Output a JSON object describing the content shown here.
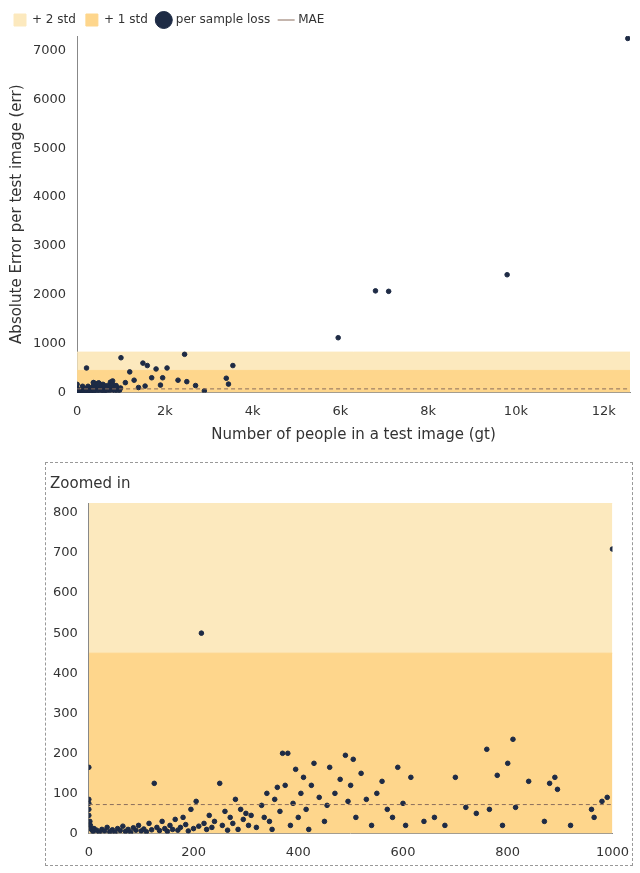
{
  "chart_data": [
    {
      "type": "scatter",
      "x_label": "Number of people in a test image (gt)",
      "y_label": "Absolute Error per test image (err)",
      "xlim": [
        0,
        12600
      ],
      "xticks": [
        0,
        {
          "value": 2000,
          "label": "2k"
        },
        {
          "value": 4000,
          "label": "4k"
        },
        {
          "value": 6000,
          "label": "6k"
        },
        {
          "value": 8000,
          "label": "8k"
        },
        {
          "value": 10000,
          "label": "10k"
        },
        {
          "value": 12000,
          "label": "12k"
        }
      ],
      "ylim": [
        0,
        7300
      ],
      "yticks": [
        0,
        1000,
        2000,
        3000,
        4000,
        5000,
        6000,
        7000
      ],
      "grid": false,
      "legend": "upper left",
      "series": [
        {
          "name": "+ 2 std",
          "type": "area",
          "color": "#fce9be",
          "x": [
            0,
            12600
          ],
          "values": [
            825,
            825
          ]
        },
        {
          "name": "+ 1 std",
          "type": "area",
          "color": "#fed68c",
          "x": [
            0,
            12600
          ],
          "values": [
            450,
            450
          ]
        },
        {
          "name": "per sample loss",
          "type": "scatter",
          "color": "#1e2b45",
          "marker": "circle",
          "x": [
            0,
            0,
            0,
            0,
            0,
            2,
            3,
            5,
            8,
            10,
            15,
            20,
            25,
            30,
            35,
            40,
            45,
            50,
            55,
            60,
            65,
            70,
            75,
            80,
            85,
            90,
            95,
            100,
            105,
            110,
            115,
            120,
            125,
            130,
            135,
            140,
            145,
            150,
            155,
            160,
            165,
            170,
            175,
            180,
            185,
            190,
            195,
            200,
            205,
            210,
            215,
            220,
            225,
            230,
            235,
            240,
            250,
            255,
            260,
            265,
            270,
            275,
            280,
            285,
            290,
            295,
            300,
            305,
            310,
            320,
            330,
            335,
            340,
            345,
            350,
            355,
            360,
            365,
            370,
            375,
            380,
            385,
            390,
            395,
            400,
            405,
            410,
            415,
            420,
            425,
            430,
            440,
            450,
            455,
            460,
            470,
            480,
            490,
            495,
            500,
            505,
            510,
            520,
            530,
            540,
            550,
            560,
            570,
            580,
            590,
            600,
            605,
            615,
            640,
            660,
            680,
            700,
            720,
            740,
            760,
            765,
            780,
            790,
            800,
            810,
            815,
            840,
            870,
            880,
            890,
            895,
            920,
            960,
            965,
            980,
            990,
            1000,
            1100,
            1200,
            1300,
            1400,
            1500,
            1550,
            1600,
            1700,
            1800,
            1900,
            1950,
            2050,
            2300,
            2450,
            2500,
            2700,
            2900,
            3400,
            3450,
            3550,
            5950,
            6800,
            7100,
            9800,
            12550
          ],
          "values": [
            165,
            85,
            75,
            60,
            45,
            30,
            20,
            10,
            5,
            12,
            8,
            3,
            10,
            6,
            15,
            4,
            9,
            2,
            12,
            7,
            18,
            5,
            10,
            3,
            14,
            8,
            20,
            6,
            11,
            4,
            25,
            9,
            125,
            15,
            7,
            30,
            12,
            5,
            20,
            10,
            35,
            8,
            15,
            40,
            22,
            6,
            60,
            12,
            80,
            18,
            500,
            25,
            10,
            45,
            15,
            30,
            125,
            20,
            55,
            8,
            40,
            25,
            85,
            10,
            60,
            35,
            50,
            20,
            45,
            15,
            70,
            40,
            100,
            30,
            10,
            85,
            115,
            55,
            200,
            120,
            200,
            20,
            75,
            160,
            40,
            100,
            140,
            60,
            10,
            120,
            175,
            90,
            30,
            70,
            165,
            100,
            135,
            195,
            80,
            120,
            185,
            40,
            150,
            85,
            20,
            100,
            130,
            60,
            40,
            165,
            75,
            20,
            140,
            30,
            40,
            20,
            140,
            65,
            50,
            210,
            60,
            145,
            20,
            175,
            235,
            65,
            130,
            30,
            125,
            140,
            110,
            20,
            60,
            40,
            80,
            90,
            710,
            200,
            420,
            250,
            100,
            600,
            130,
            550,
            300,
            480,
            150,
            300,
            500,
            250,
            780,
            220,
            140,
            30,
            290,
            170,
            550,
            1120,
            2080,
            2070,
            2410,
            7250
          ]
        },
        {
          "name": "MAE",
          "type": "line",
          "color": "#8a6d5c",
          "line_style": "dashed",
          "x": [
            0,
            12600
          ],
          "values": [
            72,
            72
          ]
        }
      ]
    },
    {
      "type": "scatter",
      "title": "Zoomed in",
      "xlim": [
        0,
        1000
      ],
      "xticks": [
        0,
        200,
        400,
        600,
        800,
        1000
      ],
      "ylim": [
        0,
        825
      ],
      "yticks": [
        0,
        100,
        200,
        300,
        400,
        500,
        600,
        700,
        800
      ],
      "grid": false,
      "series": [
        {
          "type": "area",
          "color": "#fce9be",
          "x": [
            0,
            1000
          ],
          "values": [
            825,
            825
          ]
        },
        {
          "type": "area",
          "color": "#fed68c",
          "x": [
            0,
            1000
          ],
          "values": [
            450,
            450
          ]
        },
        {
          "type": "scatter",
          "color": "#1e2b45",
          "marker": "circle",
          "x": [
            0,
            0,
            0,
            0,
            0,
            2,
            3,
            5,
            8,
            10,
            15,
            20,
            25,
            30,
            35,
            40,
            45,
            50,
            55,
            60,
            65,
            70,
            75,
            80,
            85,
            90,
            95,
            100,
            105,
            110,
            115,
            120,
            125,
            130,
            135,
            140,
            145,
            150,
            155,
            160,
            165,
            170,
            175,
            180,
            185,
            190,
            195,
            200,
            205,
            210,
            215,
            220,
            225,
            230,
            235,
            240,
            250,
            255,
            260,
            265,
            270,
            275,
            280,
            285,
            290,
            295,
            300,
            305,
            310,
            320,
            330,
            335,
            340,
            345,
            350,
            355,
            360,
            365,
            370,
            375,
            380,
            385,
            390,
            395,
            400,
            405,
            410,
            415,
            420,
            425,
            430,
            440,
            450,
            455,
            460,
            470,
            480,
            490,
            495,
            500,
            505,
            510,
            520,
            530,
            540,
            550,
            560,
            570,
            580,
            590,
            600,
            605,
            615,
            640,
            660,
            680,
            700,
            720,
            740,
            760,
            765,
            780,
            790,
            800,
            810,
            815,
            840,
            870,
            880,
            890,
            895,
            920,
            960,
            965,
            980,
            990,
            1000
          ],
          "values": [
            165,
            85,
            75,
            60,
            45,
            30,
            20,
            10,
            5,
            12,
            8,
            3,
            10,
            6,
            15,
            4,
            9,
            2,
            12,
            7,
            18,
            5,
            10,
            3,
            14,
            8,
            20,
            6,
            11,
            4,
            25,
            9,
            125,
            15,
            7,
            30,
            12,
            5,
            20,
            10,
            35,
            8,
            15,
            40,
            22,
            6,
            60,
            12,
            80,
            18,
            500,
            25,
            10,
            45,
            15,
            30,
            125,
            20,
            55,
            8,
            40,
            25,
            85,
            10,
            60,
            35,
            50,
            20,
            45,
            15,
            70,
            40,
            100,
            30,
            10,
            85,
            115,
            55,
            200,
            120,
            200,
            20,
            75,
            160,
            40,
            100,
            140,
            60,
            10,
            120,
            175,
            90,
            30,
            70,
            165,
            100,
            135,
            195,
            80,
            120,
            185,
            40,
            150,
            85,
            20,
            100,
            130,
            60,
            40,
            165,
            75,
            20,
            140,
            30,
            40,
            20,
            140,
            65,
            50,
            210,
            60,
            145,
            20,
            175,
            235,
            65,
            130,
            30,
            125,
            140,
            110,
            20,
            60,
            40,
            80,
            90,
            710
          ]
        },
        {
          "type": "line",
          "color": "#8a6d5c",
          "line_style": "dashed",
          "x": [
            0,
            1000
          ],
          "values": [
            72,
            72
          ]
        }
      ]
    }
  ]
}
